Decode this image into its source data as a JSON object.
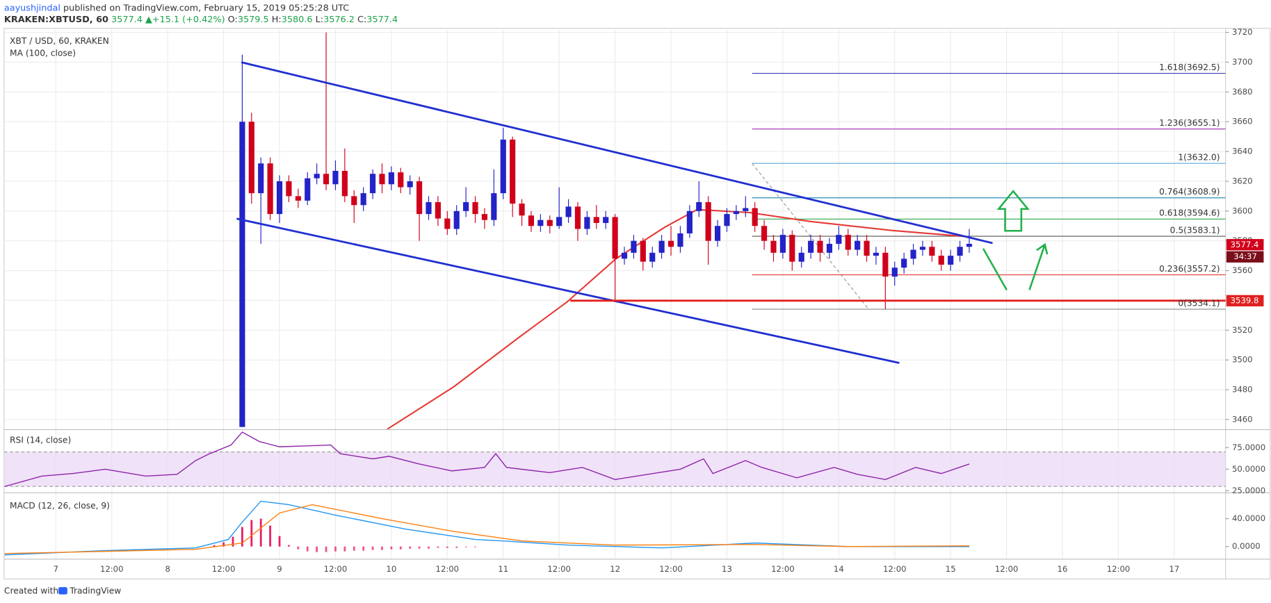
{
  "header": {
    "author": "aayushjindal",
    "published": "published on TradingView.com, February 15, 2019 05:25:28 UTC",
    "symbol": "KRAKEN:XBTUSD, 60",
    "last": 3577.4,
    "change": "+15.1 (+0.42%)",
    "ohlc": [
      {
        "label": "O:",
        "value": 3579.5
      },
      {
        "label": "H:",
        "value": 3580.6
      },
      {
        "label": "L:",
        "value": 3576.2
      },
      {
        "label": "C:",
        "value": 3577.4
      }
    ]
  },
  "footer": {
    "created": "Created with",
    "brand": "TradingView"
  },
  "chart_data": {
    "type": "candlestick",
    "title": "XBT / USD, 60, KRAKEN",
    "up_color": "#2323c8",
    "down_color": "#d0021b",
    "grid": true,
    "x": [
      40,
      42,
      44,
      46,
      48,
      50,
      52,
      54,
      56,
      58,
      60,
      62,
      64,
      66,
      68,
      70,
      72,
      74,
      76,
      78,
      80,
      82,
      84,
      86,
      88,
      90,
      92,
      94,
      96,
      98,
      100,
      102,
      104,
      106,
      108,
      110,
      112,
      114,
      116,
      118,
      120,
      122,
      124,
      126,
      128,
      130,
      132,
      134,
      136,
      138,
      140,
      142,
      144,
      146,
      148,
      150,
      152,
      154,
      156,
      158,
      160,
      162,
      164,
      166,
      168,
      170,
      172,
      174,
      176,
      178,
      180,
      182,
      184,
      186,
      188,
      190,
      192,
      194,
      196
    ],
    "open": [
      3455,
      3660,
      3612,
      3632,
      3598,
      3620,
      3610,
      3607,
      3622,
      3625,
      3618,
      3627,
      3610,
      3604,
      3612,
      3625,
      3618,
      3626,
      3616,
      3620,
      3598,
      3606,
      3595,
      3588,
      3600,
      3606,
      3598,
      3594,
      3612,
      3648,
      3605,
      3597,
      3590,
      3594,
      3590,
      3596,
      3603,
      3588,
      3596,
      3592,
      3596,
      3568,
      3572,
      3580,
      3566,
      3572,
      3580,
      3576,
      3585,
      3600,
      3606,
      3580,
      3590,
      3598,
      3600,
      3602,
      3590,
      3580,
      3572,
      3584,
      3566,
      3572,
      3580,
      3572,
      3578,
      3584,
      3574,
      3580,
      3570,
      3572,
      3556,
      3562,
      3568,
      3574,
      3576,
      3570,
      3564,
      3570,
      3576
    ],
    "high": [
      3705,
      3666,
      3636,
      3636,
      3624,
      3624,
      3615,
      3626,
      3632,
      3720,
      3634,
      3642,
      3614,
      3616,
      3628,
      3632,
      3630,
      3629,
      3624,
      3623,
      3610,
      3610,
      3600,
      3604,
      3616,
      3610,
      3602,
      3628,
      3656,
      3650,
      3608,
      3600,
      3598,
      3597,
      3616,
      3608,
      3606,
      3600,
      3604,
      3600,
      3598,
      3576,
      3584,
      3582,
      3576,
      3584,
      3590,
      3590,
      3604,
      3620,
      3610,
      3594,
      3602,
      3604,
      3610,
      3606,
      3594,
      3584,
      3588,
      3587,
      3576,
      3584,
      3584,
      3582,
      3590,
      3588,
      3584,
      3584,
      3576,
      3576,
      3566,
      3572,
      3578,
      3580,
      3580,
      3574,
      3574,
      3580,
      3588
    ],
    "low": [
      3455,
      3605,
      3578,
      3594,
      3592,
      3606,
      3602,
      3604,
      3618,
      3614,
      3614,
      3606,
      3592,
      3600,
      3608,
      3612,
      3614,
      3612,
      3611,
      3580,
      3594,
      3590,
      3584,
      3584,
      3596,
      3592,
      3588,
      3590,
      3608,
      3596,
      3590,
      3586,
      3586,
      3585,
      3588,
      3592,
      3580,
      3584,
      3588,
      3588,
      3540,
      3564,
      3568,
      3560,
      3562,
      3568,
      3570,
      3572,
      3582,
      3596,
      3564,
      3576,
      3586,
      3594,
      3596,
      3586,
      3574,
      3566,
      3568,
      3560,
      3562,
      3568,
      3566,
      3568,
      3574,
      3570,
      3570,
      3566,
      3564,
      3534,
      3550,
      3558,
      3564,
      3570,
      3566,
      3560,
      3560,
      3566,
      3572
    ],
    "close": [
      3660,
      3612,
      3632,
      3598,
      3620,
      3610,
      3607,
      3622,
      3625,
      3618,
      3627,
      3610,
      3604,
      3612,
      3625,
      3618,
      3626,
      3616,
      3620,
      3598,
      3606,
      3595,
      3588,
      3600,
      3606,
      3598,
      3594,
      3612,
      3648,
      3605,
      3597,
      3590,
      3594,
      3590,
      3596,
      3603,
      3588,
      3596,
      3592,
      3596,
      3568,
      3572,
      3580,
      3566,
      3572,
      3580,
      3576,
      3585,
      3600,
      3606,
      3580,
      3590,
      3598,
      3600,
      3602,
      3590,
      3580,
      3572,
      3584,
      3566,
      3572,
      3580,
      3572,
      3578,
      3584,
      3574,
      3580,
      3570,
      3572,
      3556,
      3562,
      3568,
      3574,
      3576,
      3570,
      3564,
      3570,
      3576,
      3578
    ],
    "xlim": [
      -11.1,
      251
    ],
    "xticks": [
      {
        "value": 0,
        "label": "7"
      },
      {
        "value": 12,
        "label": "12:00"
      },
      {
        "value": 24,
        "label": "8"
      },
      {
        "value": 36,
        "label": "12:00"
      },
      {
        "value": 48,
        "label": "9"
      },
      {
        "value": 60,
        "label": "12:00"
      },
      {
        "value": 72,
        "label": "10"
      },
      {
        "value": 84,
        "label": "12:00"
      },
      {
        "value": 96,
        "label": "11"
      },
      {
        "value": 108,
        "label": "12:00"
      },
      {
        "value": 120,
        "label": "12"
      },
      {
        "value": 132,
        "label": "12:00"
      },
      {
        "value": 144,
        "label": "13"
      },
      {
        "value": 156,
        "label": "12:00"
      },
      {
        "value": 168,
        "label": "14"
      },
      {
        "value": 180,
        "label": "12:00"
      },
      {
        "value": 192,
        "label": "15"
      },
      {
        "value": 204,
        "label": "12:00"
      },
      {
        "value": 216,
        "label": "16"
      },
      {
        "value": 228,
        "label": "12:00"
      },
      {
        "value": 240,
        "label": "17"
      }
    ],
    "ylim": [
      3453.5,
      3722.7
    ],
    "yticks": [
      3460,
      3480,
      3500,
      3520,
      3540,
      3560,
      3580,
      3600,
      3620,
      3640,
      3660,
      3680,
      3700,
      3720
    ],
    "overlays": [
      {
        "name": "MA (100, close)",
        "color": "#e53935",
        "x": [
          71.1,
          85.4,
          99.3,
          109.7,
          120.2,
          130.6,
          137.6,
          148.9,
          161.9,
          179.3,
          195
        ],
        "values": [
          3453.5,
          3482,
          3515,
          3539,
          3568,
          3589,
          3601,
          3599,
          3593,
          3587,
          3583
        ]
      }
    ],
    "trendlines": [
      {
        "color": "#1f2fd0",
        "x": [
          39.8,
          201
        ],
        "values": [
          3699.9,
          3578.5
        ]
      },
      {
        "color": "#1f2fd0",
        "x": [
          38.8,
          181
        ],
        "values": [
          3594.9,
          3498.0
        ]
      },
      {
        "color": "#e02020",
        "x": [
          110.4,
          251
        ],
        "values": [
          3539.8,
          3539.8
        ]
      }
    ],
    "fib": {
      "x": [
        149.4,
        251
      ],
      "anchor": {
        "x": [
          149.4,
          174.4
        ],
        "values": [
          3632.0,
          3534.1
        ]
      },
      "levels": [
        {
          "value": 3692.5,
          "label": "1.618(3692.5)",
          "color": "#3b3bb0"
        },
        {
          "value": 3655.1,
          "label": "1.236(3655.1)",
          "color": "#9c27b0"
        },
        {
          "value": 3632.0,
          "label": "1(3632.0)",
          "color": "#5aa9e6"
        },
        {
          "value": 3608.9,
          "label": "0.764(3608.9)",
          "color": "#2a8fb5"
        },
        {
          "value": 3594.6,
          "label": "0.618(3594.6)",
          "color": "#43b05c"
        },
        {
          "value": 3583.1,
          "label": "0.5(3583.1)",
          "color": "#555555"
        },
        {
          "value": 3557.2,
          "label": "0.236(3557.2)",
          "color": "#e53935"
        },
        {
          "value": 3534.1,
          "label": "0(3534.1)",
          "color": "#888888"
        }
      ]
    },
    "price_tags": [
      {
        "value": 3577.4,
        "label": "3577.4",
        "color": "#d0021b"
      },
      {
        "value": 3539.8,
        "label": "3539.8",
        "color": "#e02020"
      }
    ],
    "countdown": "34:37",
    "panes": [
      {
        "type": "line",
        "title": "RSI (14, close)",
        "ylim": [
          23.1,
          95.4
        ],
        "yticks": [
          {
            "value": 75,
            "label": "75.0000"
          },
          {
            "value": 50,
            "label": "50.0000"
          },
          {
            "value": 25,
            "label": "25.0000"
          }
        ],
        "band": [
          30,
          70
        ],
        "band_color": "#e9d5f5",
        "series": [
          {
            "color": "#8e24aa",
            "x": [
              -11,
              -3,
              3.7,
              10.6,
              19.3,
              26,
              30,
              33,
              37.6,
              40,
              43.7,
              48,
              54,
              59,
              61,
              68,
              71.5,
              78,
              85,
              92,
              94.4,
              96.7,
              106,
              113,
              120,
              127,
              134,
              139,
              141,
              148,
              151.5,
              159,
              167,
              172,
              178,
              184.5,
              190,
              196
            ],
            "values": [
              30,
              42,
              45,
              50,
              42,
              44,
              60,
              68,
              78,
              93,
              82,
              76,
              77,
              78,
              68,
              62,
              65,
              56,
              48,
              52,
              68,
              52,
              46,
              52,
              38,
              44,
              50,
              62,
              45,
              60,
              52,
              40,
              52,
              44,
              38,
              52,
              45,
              56
            ]
          }
        ]
      },
      {
        "type": "macd",
        "title": "MACD (12, 26, close, 9)",
        "ylim": [
          -17.6,
          76.5
        ],
        "yticks": [
          {
            "value": 40,
            "label": "40.0000"
          },
          {
            "value": 0,
            "label": "0.0000"
          }
        ],
        "series": [
          {
            "color": "#2196f3",
            "x": [
              -11,
              10,
              30,
              37,
              40,
              44,
              50,
              60,
              75,
              90,
              96,
              110,
              130,
              150,
              170,
              196
            ],
            "values": [
              -12,
              -6,
              -2,
              10,
              35,
              65,
              60,
              45,
              25,
              10,
              8,
              2,
              -2,
              5,
              0,
              0
            ]
          },
          {
            "color": "#ff7f0e",
            "x": [
              -11,
              10,
              30,
              40,
              48,
              55,
              70,
              85,
              100,
              120,
              150,
              170,
              196
            ],
            "values": [
              -10,
              -7,
              -4,
              5,
              48,
              60,
              40,
              22,
              8,
              2,
              3,
              0,
              1
            ]
          }
        ],
        "histogram": {
          "color": "#e91e63",
          "x": [
            34,
            36,
            38,
            40,
            42,
            44,
            46,
            48,
            50,
            52,
            54,
            56,
            58,
            60,
            62,
            64,
            66,
            68,
            70,
            72,
            74,
            76,
            78,
            80,
            82,
            84,
            86,
            88,
            90
          ],
          "values": [
            2,
            6,
            14,
            28,
            38,
            40,
            30,
            15,
            2,
            -4,
            -7,
            -8,
            -8,
            -7,
            -7,
            -6,
            -6,
            -5,
            -5,
            -4,
            -4,
            -3,
            -3,
            -3,
            -2,
            -2,
            -2,
            -1,
            -1
          ]
        }
      }
    ]
  }
}
